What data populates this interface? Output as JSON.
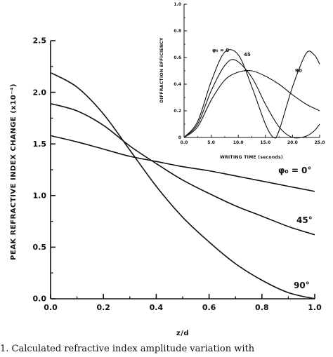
{
  "chart_data": [
    {
      "type": "line",
      "title": "",
      "xlabel": "z/d",
      "ylabel": "PEAK REFRACTIVE INDEX CHANGE (x10⁻⁴)",
      "xlim": [
        0.0,
        1.0
      ],
      "ylim": [
        0.0,
        2.5
      ],
      "x_ticks": [
        "0.0",
        "0.2",
        "0.4",
        "0.6",
        "0.8",
        "1.0"
      ],
      "y_ticks": [
        "0.0",
        "0.5",
        "1.0",
        "1.5",
        "2.0",
        "2.5"
      ],
      "grid": false,
      "series": [
        {
          "name": "φ₀ = 0°",
          "x": [
            0,
            0.1,
            0.2,
            0.3,
            0.4,
            0.5,
            0.6,
            0.7,
            0.8,
            0.9,
            1.0
          ],
          "y": [
            1.58,
            1.52,
            1.45,
            1.38,
            1.33,
            1.28,
            1.24,
            1.19,
            1.14,
            1.09,
            1.04
          ]
        },
        {
          "name": "45°",
          "x": [
            0,
            0.1,
            0.2,
            0.3,
            0.4,
            0.5,
            0.6,
            0.7,
            0.8,
            0.9,
            1.0
          ],
          "y": [
            1.89,
            1.82,
            1.68,
            1.48,
            1.31,
            1.15,
            1.02,
            0.9,
            0.8,
            0.7,
            0.62
          ]
        },
        {
          "name": "90°",
          "x": [
            0,
            0.1,
            0.2,
            0.3,
            0.4,
            0.5,
            0.6,
            0.7,
            0.8,
            0.9,
            1.0
          ],
          "y": [
            2.19,
            2.05,
            1.79,
            1.44,
            1.09,
            0.79,
            0.55,
            0.34,
            0.18,
            0.06,
            0.0
          ]
        }
      ]
    },
    {
      "type": "line",
      "title": "",
      "xlabel": "WRITING TIME (seconds)",
      "ylabel": "DIFFRACTION EFFICIENCY",
      "xlim": [
        0.0,
        25.0
      ],
      "ylim": [
        0.0,
        1.0
      ],
      "x_ticks": [
        "0.0",
        "5.0",
        "10.0",
        "15.0",
        "20.0",
        "25.0"
      ],
      "y_ticks": [
        "0",
        "0.2",
        "0.4",
        "0.6",
        "0.8",
        "1.0"
      ],
      "series": [
        {
          "name": "φ₀ = 0",
          "x": [
            0,
            2.5,
            5,
            7.5,
            10,
            12.5,
            15,
            16.5,
            17.5,
            20,
            22.5,
            24,
            25
          ],
          "y": [
            0.0,
            0.12,
            0.42,
            0.64,
            0.62,
            0.38,
            0.1,
            0.0,
            0.05,
            0.38,
            0.63,
            0.62,
            0.55
          ]
        },
        {
          "name": "45",
          "x": [
            0,
            2.5,
            5,
            7.5,
            9.5,
            12.5,
            15,
            17.5,
            20,
            22.5,
            24,
            25
          ],
          "y": [
            0.0,
            0.1,
            0.35,
            0.54,
            0.58,
            0.45,
            0.25,
            0.08,
            0.0,
            0.01,
            0.05,
            0.1
          ]
        },
        {
          "name": "90",
          "x": [
            0,
            2.5,
            5,
            7.5,
            10,
            12.5,
            15,
            17.5,
            20,
            22.5,
            25
          ],
          "y": [
            0.0,
            0.08,
            0.28,
            0.43,
            0.49,
            0.5,
            0.46,
            0.4,
            0.32,
            0.25,
            0.2
          ]
        }
      ]
    }
  ],
  "labels": {
    "main_phi": "φ₀ = 0°",
    "main_45": "45°",
    "main_90": "90°",
    "inset_phi": "φ₀ = 0",
    "inset_45": "45",
    "inset_90": "90"
  },
  "caption": "1.  Calculated refractive index amplitude variation with"
}
